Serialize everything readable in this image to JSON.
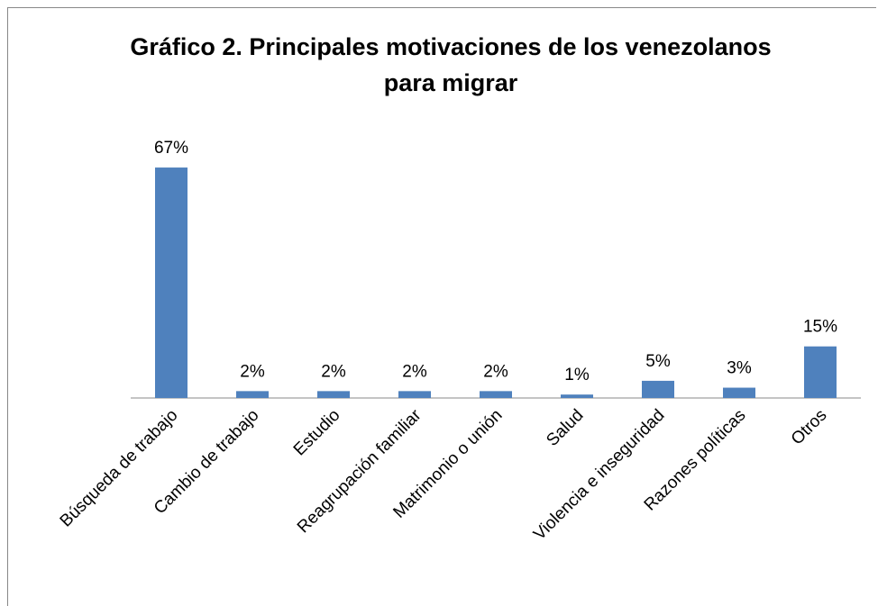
{
  "chart_data": {
    "type": "bar",
    "title": "Gráfico 2. Principales motivaciones de los venezolanos para migrar",
    "categories": [
      "Búsqueda de trabajo",
      "Cambio de trabajo",
      "Estudio",
      "Reagrupación familiar",
      "Matrimonio o unión",
      "Salud",
      "Violencia e inseguridad",
      "Razones políticas",
      "Otros"
    ],
    "values": [
      67,
      2,
      2,
      2,
      2,
      1,
      5,
      3,
      15
    ],
    "value_labels": [
      "67%",
      "2%",
      "2%",
      "2%",
      "2%",
      "1%",
      "5%",
      "3%",
      "15%"
    ],
    "color": "#4f81bd"
  }
}
